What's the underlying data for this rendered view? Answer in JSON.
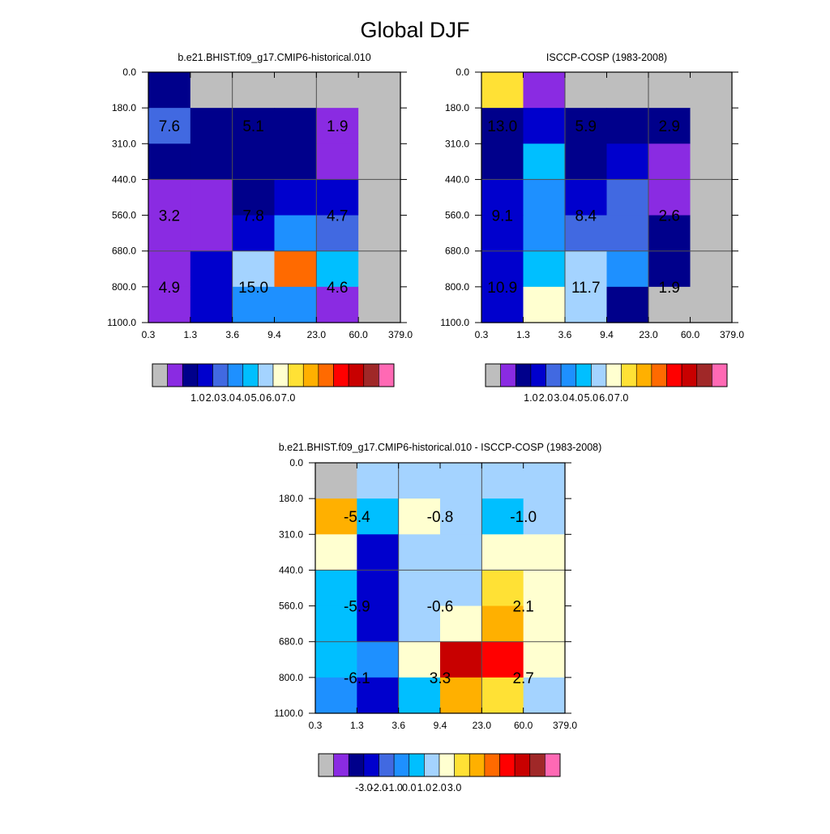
{
  "title": "Global DJF",
  "x_tick_labels": [
    "0.3",
    "1.3",
    "3.6",
    "9.4",
    "23.0",
    "60.0",
    "379.0"
  ],
  "y_tick_labels": [
    "0.0",
    "180.0",
    "310.0",
    "440.0",
    "560.0",
    "680.0",
    "800.0",
    "1100.0"
  ],
  "colors": {
    "missing": "#bebebe",
    "border": "#000000",
    "grid": "#505050"
  },
  "chart_data": [
    {
      "type": "heatmap",
      "title": "b.e21.BHIST.f09_g17.CMIP6-historical.010",
      "xlabel": "",
      "ylabel": "",
      "x_edges": [
        "0.3",
        "1.3",
        "3.6",
        "9.4",
        "23.0",
        "60.0",
        "379.0"
      ],
      "y_edges": [
        "0.0",
        "180.0",
        "310.0",
        "440.0",
        "560.0",
        "680.0",
        "800.0",
        "1100.0"
      ],
      "grid": true,
      "cell_colors": [
        [
          "#00008b",
          "#bebebe",
          "#bebebe",
          "#bebebe",
          "#bebebe",
          "#bebebe"
        ],
        [
          "#4169e1",
          "#00008b",
          "#00008b",
          "#00008b",
          "#8a2be2",
          "#bebebe"
        ],
        [
          "#00008b",
          "#00008b",
          "#00008b",
          "#00008b",
          "#8a2be2",
          "#bebebe"
        ],
        [
          "#8a2be2",
          "#8a2be2",
          "#00008b",
          "#0000cd",
          "#0000cd",
          "#bebebe"
        ],
        [
          "#8a2be2",
          "#8a2be2",
          "#0000cd",
          "#1e90ff",
          "#4169e1",
          "#bebebe"
        ],
        [
          "#8a2be2",
          "#0000cd",
          "#a4d3ff",
          "#ff6a00",
          "#00bfff",
          "#bebebe"
        ],
        [
          "#8a2be2",
          "#0000cd",
          "#1e90ff",
          "#1e90ff",
          "#8a2be2",
          "#bebebe"
        ]
      ],
      "annotations": [
        {
          "text": "7.6",
          "col": 0.5,
          "row": 1.5
        },
        {
          "text": "5.1",
          "col": 2.5,
          "row": 1.5
        },
        {
          "text": "1.9",
          "col": 4.5,
          "row": 1.5
        },
        {
          "text": "3.2",
          "col": 0.5,
          "row": 4.0
        },
        {
          "text": "7.8",
          "col": 2.5,
          "row": 4.0
        },
        {
          "text": "4.7",
          "col": 4.5,
          "row": 4.0
        },
        {
          "text": "4.9",
          "col": 0.5,
          "row": 6.0
        },
        {
          "text": "15.0",
          "col": 2.5,
          "row": 6.0
        },
        {
          "text": "4.6",
          "col": 4.5,
          "row": 6.0
        }
      ],
      "colorbar": {
        "colors": [
          "#bebebe",
          "#8a2be2",
          "#00008b",
          "#0000cd",
          "#4169e1",
          "#1e90ff",
          "#00bfff",
          "#a4d3ff",
          "#ffffd0",
          "#ffe135",
          "#ffb000",
          "#ff6a00",
          "#ff0000",
          "#c80000",
          "#a02828",
          "#ff69b4"
        ],
        "labels": [
          "1.0",
          "2.0",
          "3.0",
          "4.0",
          "5.0",
          "6.0",
          "7.0"
        ]
      }
    },
    {
      "type": "heatmap",
      "title": "ISCCP-COSP (1983-2008)",
      "xlabel": "",
      "ylabel": "",
      "x_edges": [
        "0.3",
        "1.3",
        "3.6",
        "9.4",
        "23.0",
        "60.0",
        "379.0"
      ],
      "y_edges": [
        "0.0",
        "180.0",
        "310.0",
        "440.0",
        "560.0",
        "680.0",
        "800.0",
        "1100.0"
      ],
      "grid": true,
      "cell_colors": [
        [
          "#ffe135",
          "#8a2be2",
          "#bebebe",
          "#bebebe",
          "#bebebe",
          "#bebebe"
        ],
        [
          "#00008b",
          "#0000cd",
          "#00008b",
          "#00008b",
          "#00008b",
          "#bebebe"
        ],
        [
          "#00008b",
          "#00bfff",
          "#00008b",
          "#0000cd",
          "#8a2be2",
          "#bebebe"
        ],
        [
          "#0000cd",
          "#1e90ff",
          "#0000cd",
          "#4169e1",
          "#8a2be2",
          "#bebebe"
        ],
        [
          "#0000cd",
          "#1e90ff",
          "#4169e1",
          "#4169e1",
          "#00008b",
          "#bebebe"
        ],
        [
          "#0000cd",
          "#00bfff",
          "#a4d3ff",
          "#1e90ff",
          "#00008b",
          "#bebebe"
        ],
        [
          "#0000cd",
          "#ffffd0",
          "#a4d3ff",
          "#00008b",
          "#bebebe",
          "#bebebe"
        ]
      ],
      "annotations": [
        {
          "text": "13.0",
          "col": 0.5,
          "row": 1.5
        },
        {
          "text": "5.9",
          "col": 2.5,
          "row": 1.5
        },
        {
          "text": "2.9",
          "col": 4.5,
          "row": 1.5
        },
        {
          "text": "9.1",
          "col": 0.5,
          "row": 4.0
        },
        {
          "text": "8.4",
          "col": 2.5,
          "row": 4.0
        },
        {
          "text": "2.6",
          "col": 4.5,
          "row": 4.0
        },
        {
          "text": "10.9",
          "col": 0.5,
          "row": 6.0
        },
        {
          "text": "11.7",
          "col": 2.5,
          "row": 6.0
        },
        {
          "text": "1.9",
          "col": 4.5,
          "row": 6.0
        }
      ],
      "colorbar": {
        "colors": [
          "#bebebe",
          "#8a2be2",
          "#00008b",
          "#0000cd",
          "#4169e1",
          "#1e90ff",
          "#00bfff",
          "#a4d3ff",
          "#ffffd0",
          "#ffe135",
          "#ffb000",
          "#ff6a00",
          "#ff0000",
          "#c80000",
          "#a02828",
          "#ff69b4"
        ],
        "labels": [
          "1.0",
          "2.0",
          "3.0",
          "4.0",
          "5.0",
          "6.0",
          "7.0"
        ]
      }
    },
    {
      "type": "heatmap",
      "title": "b.e21.BHIST.f09_g17.CMIP6-historical.010 - ISCCP-COSP (1983-2008)",
      "xlabel": "",
      "ylabel": "",
      "x_edges": [
        "0.3",
        "1.3",
        "3.6",
        "9.4",
        "23.0",
        "60.0",
        "379.0"
      ],
      "y_edges": [
        "0.0",
        "180.0",
        "310.0",
        "440.0",
        "560.0",
        "680.0",
        "800.0",
        "1100.0"
      ],
      "grid": true,
      "cell_colors": [
        [
          "#bebebe",
          "#a4d3ff",
          "#a4d3ff",
          "#a4d3ff",
          "#a4d3ff",
          "#a4d3ff"
        ],
        [
          "#ffb000",
          "#00bfff",
          "#ffffd0",
          "#a4d3ff",
          "#00bfff",
          "#a4d3ff"
        ],
        [
          "#ffffd0",
          "#0000cd",
          "#a4d3ff",
          "#a4d3ff",
          "#ffffd0",
          "#ffffd0"
        ],
        [
          "#00bfff",
          "#0000cd",
          "#a4d3ff",
          "#a4d3ff",
          "#ffe135",
          "#ffffd0"
        ],
        [
          "#00bfff",
          "#0000cd",
          "#a4d3ff",
          "#ffffd0",
          "#ffb000",
          "#ffffd0"
        ],
        [
          "#00bfff",
          "#1e90ff",
          "#ffffd0",
          "#c80000",
          "#ff0000",
          "#ffffd0"
        ],
        [
          "#1e90ff",
          "#0000cd",
          "#00bfff",
          "#ffb000",
          "#ffe135",
          "#a4d3ff"
        ]
      ],
      "annotations": [
        {
          "text": "-5.4",
          "col": 1.0,
          "row": 1.5
        },
        {
          "text": "-0.8",
          "col": 3.0,
          "row": 1.5
        },
        {
          "text": "-1.0",
          "col": 5.0,
          "row": 1.5
        },
        {
          "text": "-5.9",
          "col": 1.0,
          "row": 4.0
        },
        {
          "text": "-0.6",
          "col": 3.0,
          "row": 4.0
        },
        {
          "text": "2.1",
          "col": 5.0,
          "row": 4.0
        },
        {
          "text": "-6.1",
          "col": 1.0,
          "row": 6.0
        },
        {
          "text": "3.3",
          "col": 3.0,
          "row": 6.0
        },
        {
          "text": "2.7",
          "col": 5.0,
          "row": 6.0
        }
      ],
      "colorbar": {
        "colors": [
          "#bebebe",
          "#8a2be2",
          "#00008b",
          "#0000cd",
          "#4169e1",
          "#1e90ff",
          "#00bfff",
          "#a4d3ff",
          "#ffffd0",
          "#ffe135",
          "#ffb000",
          "#ff6a00",
          "#ff0000",
          "#c80000",
          "#a02828",
          "#ff69b4"
        ],
        "labels": [
          "-3.0",
          "-2.0",
          "-1.0",
          "0.0",
          "1.0",
          "2.0",
          "3.0"
        ]
      }
    }
  ]
}
